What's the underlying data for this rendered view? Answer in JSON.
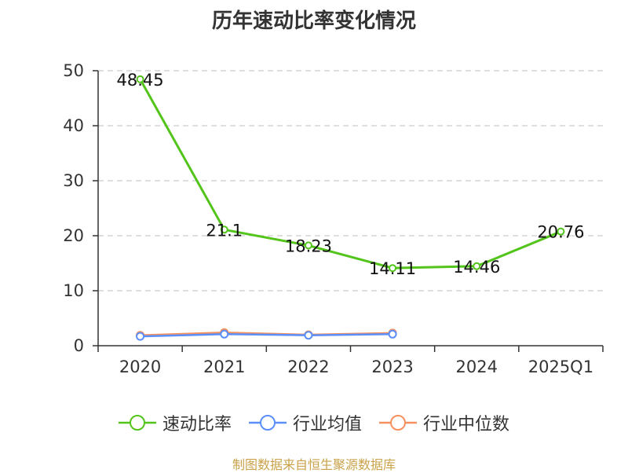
{
  "chart_data": {
    "type": "line",
    "title": "历年速动比率变化情况",
    "categories": [
      "2020",
      "2021",
      "2022",
      "2023",
      "2024",
      "2025Q1"
    ],
    "ylim": [
      0,
      50
    ],
    "yticks": [
      0,
      10,
      20,
      30,
      40,
      50
    ],
    "grid": true,
    "legend_position": "bottom",
    "series": [
      {
        "name": "速动比率",
        "color": "#52c41a",
        "values": [
          48.45,
          21.1,
          18.23,
          14.11,
          14.46,
          20.76
        ],
        "labels": [
          "48.45",
          "21.1",
          "18.23",
          "14.11",
          "14.46",
          "20.76"
        ]
      },
      {
        "name": "行业均值",
        "color": "#5b8ff9",
        "values": [
          1.7,
          2.1,
          1.9,
          2.1,
          null,
          null
        ]
      },
      {
        "name": "行业中位数",
        "color": "#f4915e",
        "values": [
          1.9,
          2.4,
          2.0,
          2.3,
          null,
          null
        ]
      }
    ]
  },
  "footer": "制图数据来自恒生聚源数据库"
}
